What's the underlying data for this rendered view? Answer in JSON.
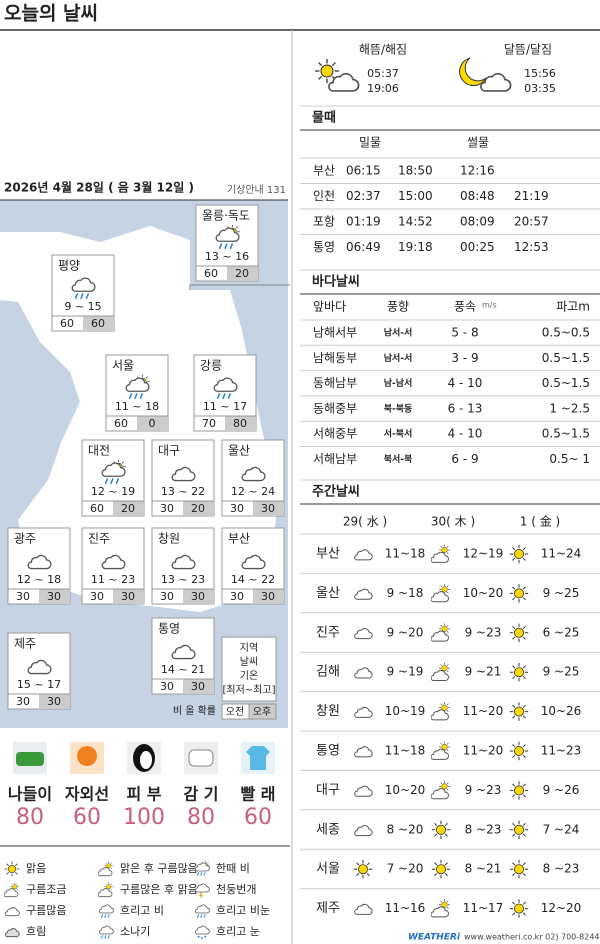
{
  "header": {
    "title": "오늘의 날씨"
  },
  "date": {
    "text": "2026년 4월 28일 ( 음 3월 12일 )",
    "info": "기상안내 131"
  },
  "map": {
    "cities": [
      {
        "name": "울릉·독도",
        "temp": "13 ~ 16",
        "am": 60,
        "pm": 20
      },
      {
        "name": "평양",
        "temp": "9 ~ 15",
        "am": 60,
        "pm": 60
      },
      {
        "name": "서울",
        "temp": "11 ~ 18",
        "am": 60,
        "pm": 0
      },
      {
        "name": "강릉",
        "temp": "11 ~ 17",
        "am": 70,
        "pm": 80
      },
      {
        "name": "대전",
        "temp": "12 ~ 19",
        "am": 60,
        "pm": 20
      },
      {
        "name": "대구",
        "temp": "13 ~ 22",
        "am": 30,
        "pm": 20
      },
      {
        "name": "울산",
        "temp": "12 ~ 24",
        "am": 30,
        "pm": 30
      },
      {
        "name": "광주",
        "temp": "12 ~ 18",
        "am": 30,
        "pm": 30
      },
      {
        "name": "진주",
        "temp": "11 ~ 23",
        "am": 30,
        "pm": 30
      },
      {
        "name": "창원",
        "temp": "13 ~ 23",
        "am": 30,
        "pm": 30
      },
      {
        "name": "부산",
        "temp": "14 ~ 22",
        "am": 30,
        "pm": 30
      },
      {
        "name": "제주",
        "temp": "15 ~ 17",
        "am": 30,
        "pm": 30
      },
      {
        "name": "통영",
        "temp": "14 ~ 21",
        "am": 30,
        "pm": 30
      }
    ],
    "legend": {
      "region": "지역",
      "weather": "날씨",
      "temp": "기온",
      "range": "[최저~최고]",
      "rain_label": "비 올 확률",
      "am": "오전",
      "pm": "오후"
    }
  },
  "indices": [
    {
      "label": "나들이",
      "value": 80
    },
    {
      "label": "자외선",
      "value": 60
    },
    {
      "label": "피 부",
      "value": 100
    },
    {
      "label": "감 기",
      "value": 80
    },
    {
      "label": "빨 래",
      "value": 60
    }
  ],
  "legend": [
    "맑음",
    "구름조금",
    "구름많음",
    "흐림",
    "맑은 후 구름많음",
    "구름많은 후 맑음",
    "흐리고 비",
    "소나기",
    "한때 비",
    "천둥번개",
    "흐리고 비눈",
    "흐리고 눈"
  ],
  "sun": {
    "label": "해뜸/해짐",
    "rise": "05:37",
    "set": "19:06"
  },
  "moon": {
    "label": "달뜸/달짐",
    "rise": "15:56",
    "set": "03:35"
  },
  "tide": {
    "title": "물때",
    "headers": [
      "밀물",
      "썰물"
    ],
    "rows": [
      [
        "부산",
        "06:15",
        "18:50",
        "12:16",
        null
      ],
      [
        "인천",
        "02:37",
        "15:00",
        "08:48",
        "21:19"
      ],
      [
        "포항",
        "01:19",
        "14:52",
        "08:09",
        "20:57"
      ],
      [
        "통영",
        "06:49",
        "19:18",
        "00:25",
        "12:53"
      ]
    ]
  },
  "sea": {
    "title": "바다날씨",
    "headers": [
      "앞바다",
      "풍향",
      "풍속",
      "파고m"
    ],
    "speed_unit": "m/s",
    "rows": [
      [
        "남해서부",
        "남서-서",
        "5 - 8",
        "0.5~0.5"
      ],
      [
        "남해동부",
        "남서-서",
        "3 - 9",
        "0.5~1.5"
      ],
      [
        "동해남부",
        "남-남서",
        "4 - 10",
        "0.5~1.5"
      ],
      [
        "동해중부",
        "북-북동",
        "6 - 13",
        "1 ~2.5"
      ],
      [
        "서해중부",
        "서-북서",
        "4 - 10",
        "0.5~1.5"
      ],
      [
        "서해남부",
        "북서-북",
        "6 - 9",
        "0.5~ 1"
      ]
    ]
  },
  "weekly": {
    "title": "주간날씨",
    "days": [
      "29( 水 )",
      "30( 木 )",
      "1 ( 金 )"
    ],
    "rows": [
      {
        "city": "부산",
        "temps": [
          "11~18",
          "12~19",
          "11~24"
        ]
      },
      {
        "city": "울산",
        "temps": [
          "9 ~18",
          "10~20",
          "9 ~25"
        ]
      },
      {
        "city": "진주",
        "temps": [
          "9 ~20",
          "9 ~23",
          "6 ~25"
        ]
      },
      {
        "city": "김해",
        "temps": [
          "9 ~19",
          "9 ~21",
          "9 ~25"
        ]
      },
      {
        "city": "창원",
        "temps": [
          "10~19",
          "11~20",
          "10~26"
        ]
      },
      {
        "city": "통영",
        "temps": [
          "11~18",
          "11~20",
          "11~23"
        ]
      },
      {
        "city": "대구",
        "temps": [
          "10~20",
          "9 ~23",
          "9 ~26"
        ]
      },
      {
        "city": "세종",
        "temps": [
          "8 ~20",
          "8 ~23",
          "7 ~24"
        ]
      },
      {
        "city": "서울",
        "temps": [
          "7 ~20",
          "8 ~21",
          "8 ~23"
        ]
      },
      {
        "city": "제주",
        "temps": [
          "11~16",
          "11~17",
          "12~20"
        ]
      }
    ]
  },
  "footer": {
    "brand": "WEATHERi",
    "contact": "www.weatheri.co.kr 02) 700-8244"
  }
}
